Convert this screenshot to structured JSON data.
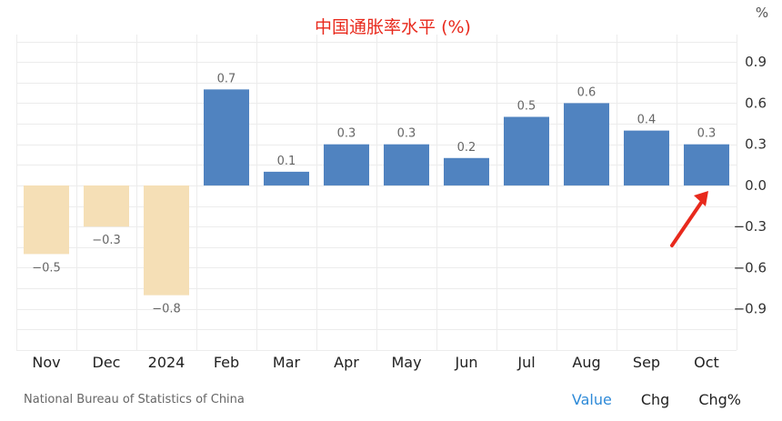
{
  "chart_data": {
    "type": "bar",
    "title": "中国通胀率水平 (%)",
    "unit_label": "%",
    "categories": [
      "Nov",
      "Dec",
      "2024",
      "Feb",
      "Mar",
      "Apr",
      "May",
      "Jun",
      "Jul",
      "Aug",
      "Sep",
      "Oct"
    ],
    "values": [
      -0.5,
      -0.3,
      -0.8,
      0.7,
      0.1,
      0.3,
      0.3,
      0.2,
      0.5,
      0.6,
      0.4,
      0.3
    ],
    "data_labels": [
      "−0.5",
      "−0.3",
      "−0.8",
      "0.7",
      "0.1",
      "0.3",
      "0.3",
      "0.2",
      "0.5",
      "0.6",
      "0.4",
      "0.3"
    ],
    "y_ticks": [
      0.9,
      0.6,
      0.3,
      0.0,
      -0.3,
      -0.6,
      -0.9
    ],
    "y_tick_labels": [
      "0.9",
      "0.6",
      "0.3",
      "0.0",
      "−0.3",
      "−0.6",
      "−0.9"
    ],
    "ylim": [
      -1.2,
      1.1
    ],
    "grid": true,
    "positive_color": "#5083c0",
    "negative_color": "#f5dfb6",
    "annotation_color": "#e8291c",
    "title_color": "#e8291c",
    "annotation": {
      "type": "arrow",
      "target_category": "Oct"
    }
  },
  "footer": {
    "source": "National Bureau of Statistics of China"
  },
  "tabs": [
    {
      "label": "Value",
      "active": true
    },
    {
      "label": "Chg",
      "active": false
    },
    {
      "label": "Chg%",
      "active": false
    }
  ]
}
